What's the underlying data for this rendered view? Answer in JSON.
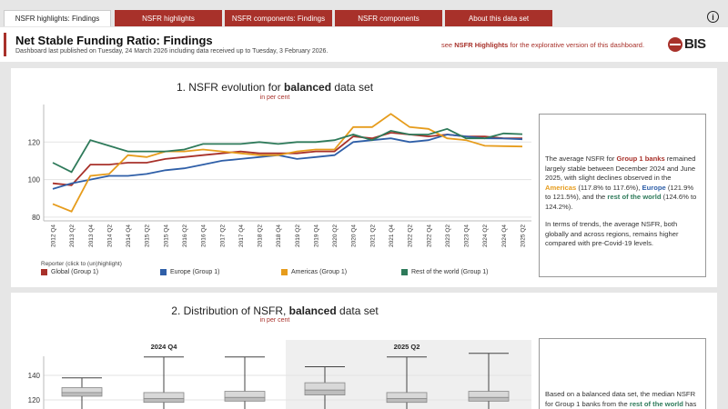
{
  "tabs": [
    {
      "label": "NSFR highlights: Findings",
      "active": true
    },
    {
      "label": "NSFR highlights",
      "active": false
    },
    {
      "label": "NSFR components: Findings",
      "active": false
    },
    {
      "label": "NSFR components",
      "active": false
    },
    {
      "label": "About this data set",
      "active": false
    }
  ],
  "info_icon": "i",
  "header": {
    "title": "Net Stable Funding Ratio: Findings",
    "subtitle": "Dashboard last published on Tuesday, 24 March 2026 including data received up to Tuesday, 3 February 2026.",
    "note_pre": "see ",
    "note_link": "NSFR Highlights",
    "note_post": " for the explorative version of this dashboard.",
    "logo_text": "BIS"
  },
  "panel1": {
    "title_pre": "1. NSFR evolution for ",
    "title_bold": "balanced",
    "title_post": " data set",
    "unit": "in per cent",
    "legend_title": "Reporter (click to (un)highlight)",
    "text": {
      "p1_a": "The average NSFR for ",
      "p1_b": "Group 1 banks",
      "p1_c": " remained largely stable between December 2024 and June 2025, with slight declines observed in the ",
      "p1_d": "Americas",
      "p1_e": " (117.8% to 117.6%), ",
      "p1_f": "Europe",
      "p1_g": " (121.9% to 121.5%), and the ",
      "p1_h": "rest of the world",
      "p1_i": " (124.6% to 124.2%).",
      "p2": "In terms of trends, the average NSFR, both globally and across regions, remains higher compared with pre-Covid-19 levels."
    }
  },
  "panel2": {
    "title_pre": "2. Distribution of NSFR, ",
    "title_bold": "balanced",
    "title_post": " data set",
    "unit": "in per cent",
    "text": {
      "p1_a": "Based on a balanced data set, the median NSFR for Group 1 banks from the ",
      "p1_b": "rest of the world",
      "p1_c": " has"
    }
  },
  "chart_data": [
    {
      "type": "line",
      "title": "1. NSFR evolution for balanced data set",
      "ylabel": "in per cent",
      "ylim": [
        78,
        140
      ],
      "yticks": [
        80,
        100,
        120
      ],
      "grid": true,
      "legend": "bottom",
      "x": [
        "2012 Q4",
        "2013 Q2",
        "2013 Q4",
        "2014 Q2",
        "2014 Q4",
        "2015 Q2",
        "2015 Q4",
        "2016 Q2",
        "2016 Q4",
        "2017 Q2",
        "2017 Q4",
        "2018 Q2",
        "2018 Q4",
        "2019 Q2",
        "2019 Q4",
        "2020 Q2",
        "2020 Q4",
        "2021 Q2",
        "2021 Q4",
        "2022 Q2",
        "2022 Q4",
        "2023 Q2",
        "2023 Q4",
        "2024 Q2",
        "2024 Q4",
        "2025 Q2"
      ],
      "series": [
        {
          "name": "Global (Group 1)",
          "color": "#a8312a",
          "values": [
            98,
            97,
            108,
            108,
            109,
            109,
            111,
            112,
            113,
            114,
            115,
            114,
            114,
            114,
            115,
            115,
            123,
            122,
            125,
            124,
            123,
            124,
            123,
            123,
            122,
            122
          ]
        },
        {
          "name": "Europe (Group 1)",
          "color": "#2f5fa8",
          "values": [
            95,
            98,
            100,
            102,
            102,
            103,
            105,
            106,
            108,
            110,
            111,
            112,
            113,
            111,
            112,
            113,
            120,
            121,
            122,
            120,
            121,
            124,
            123,
            122,
            121.9,
            121.5
          ]
        },
        {
          "name": "Americas (Group 1)",
          "color": "#e69c1c",
          "values": [
            87,
            83,
            102,
            103,
            113,
            112,
            115,
            115,
            116,
            115,
            114,
            113,
            113,
            115,
            116,
            116,
            128,
            128,
            135,
            128,
            127,
            122,
            121,
            118,
            117.8,
            117.6
          ]
        },
        {
          "name": "Rest of the world (Group 1)",
          "color": "#2e7a5a",
          "values": [
            109,
            104,
            121,
            118,
            115,
            115,
            115,
            116,
            119,
            119,
            119,
            120,
            119,
            120,
            120,
            121,
            124,
            121,
            126,
            124,
            124,
            127,
            122,
            122,
            124.6,
            124.2
          ]
        }
      ]
    },
    {
      "type": "box",
      "title": "2. Distribution of NSFR, balanced data set",
      "ylabel": "in per cent",
      "yticks": [
        120,
        140
      ],
      "groups": [
        {
          "label": "2024 Q4",
          "boxes": [
            {
              "whisker_high": 138,
              "q3": 130,
              "median": 126,
              "q1": 123
            },
            {
              "whisker_high": 155,
              "q3": 126,
              "median": 121,
              "q1": 118
            },
            {
              "whisker_high": 155,
              "q3": 127,
              "median": 122,
              "q1": 119
            }
          ]
        },
        {
          "label": "2025 Q2",
          "boxes": [
            {
              "whisker_high": 147,
              "q3": 134,
              "median": 128,
              "q1": 124
            },
            {
              "whisker_high": 155,
              "q3": 126,
              "median": 121,
              "q1": 118
            },
            {
              "whisker_high": 158,
              "q3": 127,
              "median": 122,
              "q1": 119
            }
          ]
        }
      ]
    }
  ]
}
